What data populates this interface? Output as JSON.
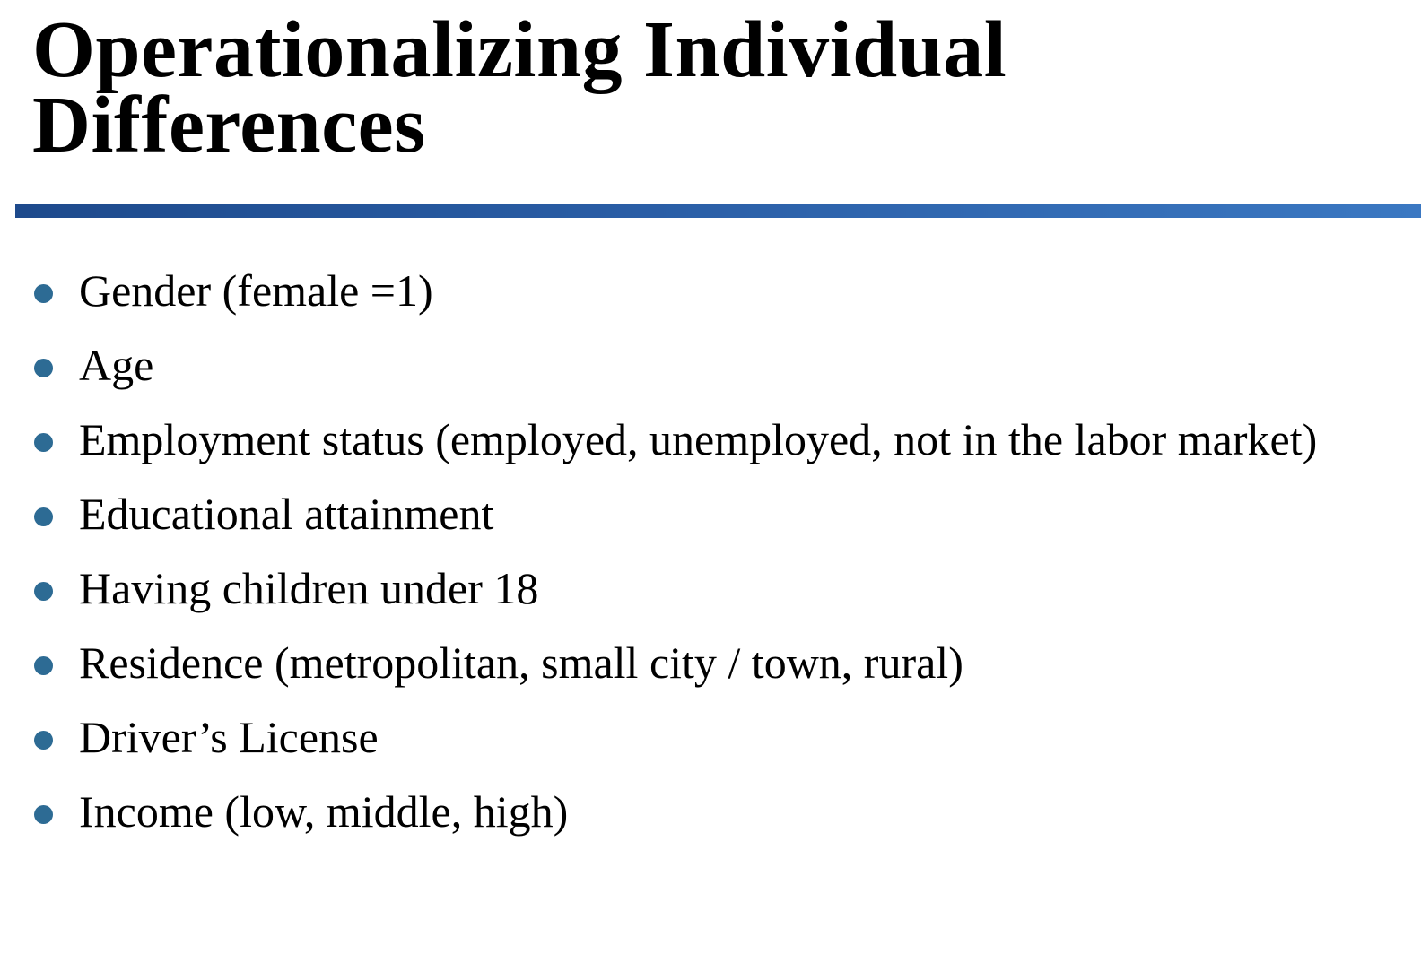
{
  "slide": {
    "title": "Operationalizing Individual Differences",
    "bullets": [
      "Gender (female =1)",
      "Age",
      "Employment status (employed, unemployed, not in the labor market)",
      "Educational attainment",
      "Having children under 18",
      "Residence (metropolitan, small city / town, rural)",
      "Driver’s License",
      "Income (low, middle, high)"
    ]
  },
  "colors": {
    "title_text": "#000000",
    "rule": "#2a5ea6",
    "bullet_marker": "#2d6b94",
    "body_text": "#000000"
  }
}
